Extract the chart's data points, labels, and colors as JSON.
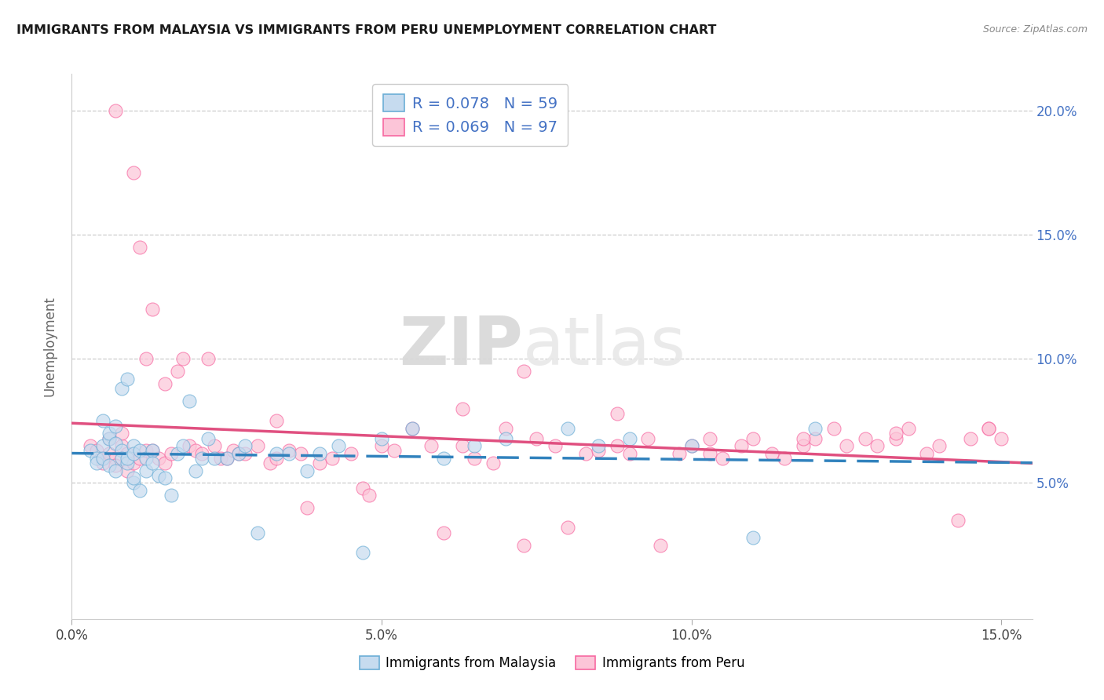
{
  "title": "IMMIGRANTS FROM MALAYSIA VS IMMIGRANTS FROM PERU UNEMPLOYMENT CORRELATION CHART",
  "source": "Source: ZipAtlas.com",
  "ylabel": "Unemployment",
  "xlim": [
    0.0,
    0.155
  ],
  "ylim": [
    -0.005,
    0.215
  ],
  "xtick_vals": [
    0.0,
    0.05,
    0.1,
    0.15
  ],
  "xtick_labels": [
    "0.0%",
    "5.0%",
    "10.0%",
    "15.0%"
  ],
  "ytick_vals_right": [
    0.05,
    0.1,
    0.15,
    0.2
  ],
  "ytick_labels_right": [
    "5.0%",
    "10.0%",
    "15.0%",
    "20.0%"
  ],
  "legend_r_malaysia": "R = 0.078",
  "legend_n_malaysia": "N = 59",
  "legend_r_peru": "R = 0.069",
  "legend_n_peru": "N = 97",
  "color_malaysia_fill": "#c6dbef",
  "color_malaysia_edge": "#6baed6",
  "color_malaysia_line": "#3182bd",
  "color_peru_fill": "#fcc5d8",
  "color_peru_edge": "#f768a1",
  "color_peru_line": "#e05080",
  "watermark_zip": "ZIP",
  "watermark_atlas": "atlas",
  "malaysia_x": [
    0.003,
    0.004,
    0.004,
    0.005,
    0.005,
    0.005,
    0.006,
    0.006,
    0.006,
    0.007,
    0.007,
    0.007,
    0.008,
    0.008,
    0.008,
    0.009,
    0.009,
    0.009,
    0.01,
    0.01,
    0.01,
    0.01,
    0.011,
    0.011,
    0.012,
    0.012,
    0.013,
    0.013,
    0.014,
    0.015,
    0.016,
    0.017,
    0.018,
    0.019,
    0.02,
    0.021,
    0.022,
    0.023,
    0.025,
    0.027,
    0.028,
    0.03,
    0.033,
    0.035,
    0.038,
    0.04,
    0.043,
    0.047,
    0.05,
    0.055,
    0.06,
    0.065,
    0.07,
    0.08,
    0.085,
    0.09,
    0.1,
    0.11,
    0.12
  ],
  "malaysia_y": [
    0.063,
    0.06,
    0.058,
    0.065,
    0.06,
    0.075,
    0.068,
    0.057,
    0.07,
    0.066,
    0.055,
    0.073,
    0.063,
    0.06,
    0.088,
    0.058,
    0.06,
    0.092,
    0.065,
    0.062,
    0.05,
    0.052,
    0.063,
    0.047,
    0.055,
    0.06,
    0.063,
    0.058,
    0.053,
    0.052,
    0.045,
    0.062,
    0.065,
    0.083,
    0.055,
    0.06,
    0.068,
    0.06,
    0.06,
    0.062,
    0.065,
    0.03,
    0.062,
    0.062,
    0.055,
    0.062,
    0.065,
    0.022,
    0.068,
    0.072,
    0.06,
    0.065,
    0.068,
    0.072,
    0.065,
    0.068,
    0.065,
    0.028,
    0.072
  ],
  "peru_x": [
    0.003,
    0.004,
    0.005,
    0.005,
    0.006,
    0.006,
    0.007,
    0.007,
    0.007,
    0.008,
    0.008,
    0.009,
    0.009,
    0.01,
    0.01,
    0.011,
    0.011,
    0.012,
    0.012,
    0.013,
    0.013,
    0.014,
    0.015,
    0.015,
    0.016,
    0.017,
    0.018,
    0.019,
    0.02,
    0.021,
    0.022,
    0.023,
    0.024,
    0.025,
    0.026,
    0.027,
    0.028,
    0.03,
    0.032,
    0.033,
    0.035,
    0.037,
    0.038,
    0.04,
    0.042,
    0.045,
    0.047,
    0.05,
    0.052,
    0.055,
    0.058,
    0.06,
    0.063,
    0.065,
    0.068,
    0.07,
    0.073,
    0.075,
    0.078,
    0.08,
    0.083,
    0.085,
    0.088,
    0.09,
    0.093,
    0.095,
    0.098,
    0.1,
    0.103,
    0.105,
    0.108,
    0.11,
    0.113,
    0.115,
    0.118,
    0.12,
    0.123,
    0.125,
    0.128,
    0.13,
    0.133,
    0.135,
    0.138,
    0.14,
    0.143,
    0.145,
    0.148,
    0.15,
    0.033,
    0.048,
    0.063,
    0.073,
    0.088,
    0.103,
    0.118,
    0.133,
    0.148
  ],
  "peru_y": [
    0.065,
    0.063,
    0.06,
    0.058,
    0.062,
    0.068,
    0.06,
    0.057,
    0.2,
    0.065,
    0.07,
    0.062,
    0.055,
    0.058,
    0.175,
    0.06,
    0.145,
    0.063,
    0.1,
    0.12,
    0.063,
    0.06,
    0.058,
    0.09,
    0.062,
    0.095,
    0.1,
    0.065,
    0.063,
    0.062,
    0.1,
    0.065,
    0.06,
    0.06,
    0.063,
    0.062,
    0.062,
    0.065,
    0.058,
    0.06,
    0.063,
    0.062,
    0.04,
    0.058,
    0.06,
    0.062,
    0.048,
    0.065,
    0.063,
    0.072,
    0.065,
    0.03,
    0.065,
    0.06,
    0.058,
    0.072,
    0.025,
    0.068,
    0.065,
    0.032,
    0.062,
    0.063,
    0.065,
    0.062,
    0.068,
    0.025,
    0.062,
    0.065,
    0.062,
    0.06,
    0.065,
    0.068,
    0.062,
    0.06,
    0.065,
    0.068,
    0.072,
    0.065,
    0.068,
    0.065,
    0.068,
    0.072,
    0.062,
    0.065,
    0.035,
    0.068,
    0.072,
    0.068,
    0.075,
    0.045,
    0.08,
    0.095,
    0.078,
    0.068,
    0.068,
    0.07,
    0.072
  ]
}
